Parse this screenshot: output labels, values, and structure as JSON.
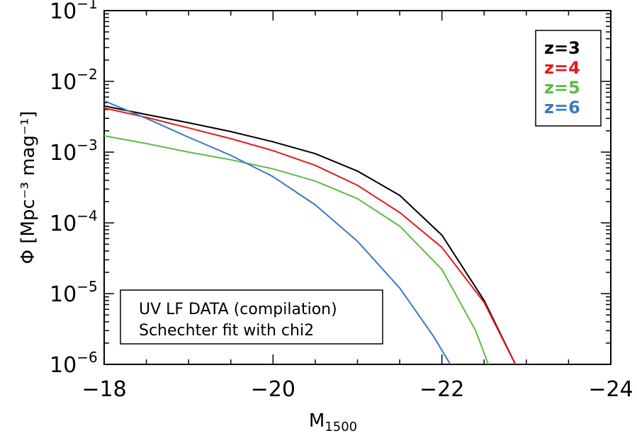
{
  "chart_data": {
    "type": "line",
    "title": "",
    "xlabel": "M",
    "xlabel_sub": "1500",
    "ylabel": "Φ [Mpc⁻³ mag⁻¹]",
    "xlim": [
      -18,
      -24
    ],
    "ylim": [
      1e-06,
      0.1
    ],
    "y_log": true,
    "x_ticks": [
      "−18",
      "−20",
      "−22",
      "−24"
    ],
    "y_ticks": [
      {
        "base": "10",
        "exp": "−1"
      },
      {
        "base": "10",
        "exp": "−2"
      },
      {
        "base": "10",
        "exp": "−3"
      },
      {
        "base": "10",
        "exp": "−4"
      },
      {
        "base": "10",
        "exp": "−5"
      },
      {
        "base": "10",
        "exp": "−6"
      }
    ],
    "legend_position": "top-right",
    "annotation": [
      "UV LF DATA (compilation)",
      "Schechter fit with chi2"
    ],
    "series": [
      {
        "name": "z=3",
        "color": "#000000",
        "x": [
          -18.0,
          -18.5,
          -19.0,
          -19.5,
          -20.0,
          -20.5,
          -21.0,
          -21.5,
          -22.0,
          -22.5,
          -22.9
        ],
        "y": [
          0.0045,
          0.0034,
          0.0026,
          0.00195,
          0.0014,
          0.00095,
          0.00054,
          0.000245,
          6.7e-05,
          8e-06,
          8.5e-07
        ]
      },
      {
        "name": "z=4",
        "color": "#e41a1c",
        "x": [
          -18.0,
          -18.5,
          -19.0,
          -19.5,
          -20.0,
          -20.5,
          -21.0,
          -21.5,
          -22.0,
          -22.5,
          -22.9
        ],
        "y": [
          0.0042,
          0.0031,
          0.0022,
          0.00155,
          0.00105,
          0.00065,
          0.00034,
          0.00014,
          4.5e-05,
          7.5e-06,
          8.5e-07
        ]
      },
      {
        "name": "z=5",
        "color": "#5dbb46",
        "x": [
          -18.0,
          -18.5,
          -19.0,
          -19.5,
          -20.0,
          -20.5,
          -21.0,
          -21.5,
          -22.0,
          -22.4,
          -22.55
        ],
        "y": [
          0.0017,
          0.00132,
          0.001,
          0.00078,
          0.00058,
          0.00039,
          0.00022,
          9e-05,
          2.2e-05,
          3e-06,
          1e-06
        ]
      },
      {
        "name": "z=6",
        "color": "#3d78c1",
        "x": [
          -18.0,
          -18.5,
          -19.0,
          -19.5,
          -20.0,
          -20.5,
          -21.0,
          -21.5,
          -21.9,
          -22.1
        ],
        "y": [
          0.0053,
          0.003,
          0.00162,
          0.0009,
          0.00045,
          0.00018,
          5.5e-05,
          1.2e-05,
          2.5e-06,
          1e-06
        ]
      }
    ]
  }
}
